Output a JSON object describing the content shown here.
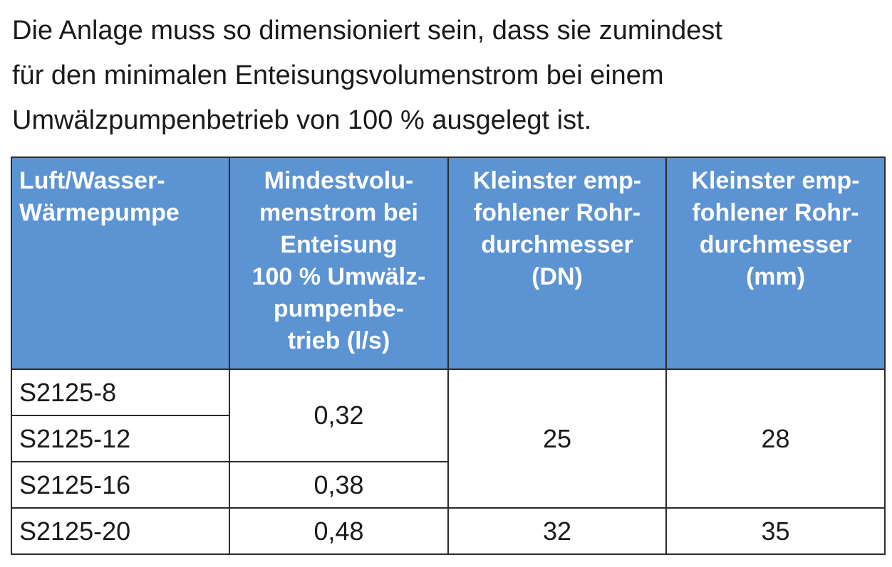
{
  "paragraph": {
    "lines": [
      "Die Anlage muss so dimensioniert sein, dass sie zumindest",
      "für den minimalen Enteisungsvolumenstrom bei einem",
      "Umwälzpumpenbetrieb von 100 % ausgelegt ist."
    ]
  },
  "table": {
    "header": [
      [
        "Luft/Wasser-",
        "Wärmepumpe"
      ],
      [
        "Mindestvolu-",
        "menstrom bei",
        "Enteisung",
        "100 % Umwälz-",
        "pumpenbe-",
        "trieb (l/s)"
      ],
      [
        "Kleinster emp-",
        "fohlener Rohr-",
        "durchmesser",
        "(DN)"
      ],
      [
        "Kleinster emp-",
        "fohlener Rohr-",
        "durchmesser",
        "(mm)"
      ]
    ],
    "rows": [
      [
        "S2125-8",
        "0,32",
        "25",
        "28"
      ],
      [
        "S2125-12"
      ],
      [
        "S2125-16",
        "0,38"
      ],
      [
        "S2125-20",
        "0,48",
        "32",
        "35"
      ]
    ]
  }
}
